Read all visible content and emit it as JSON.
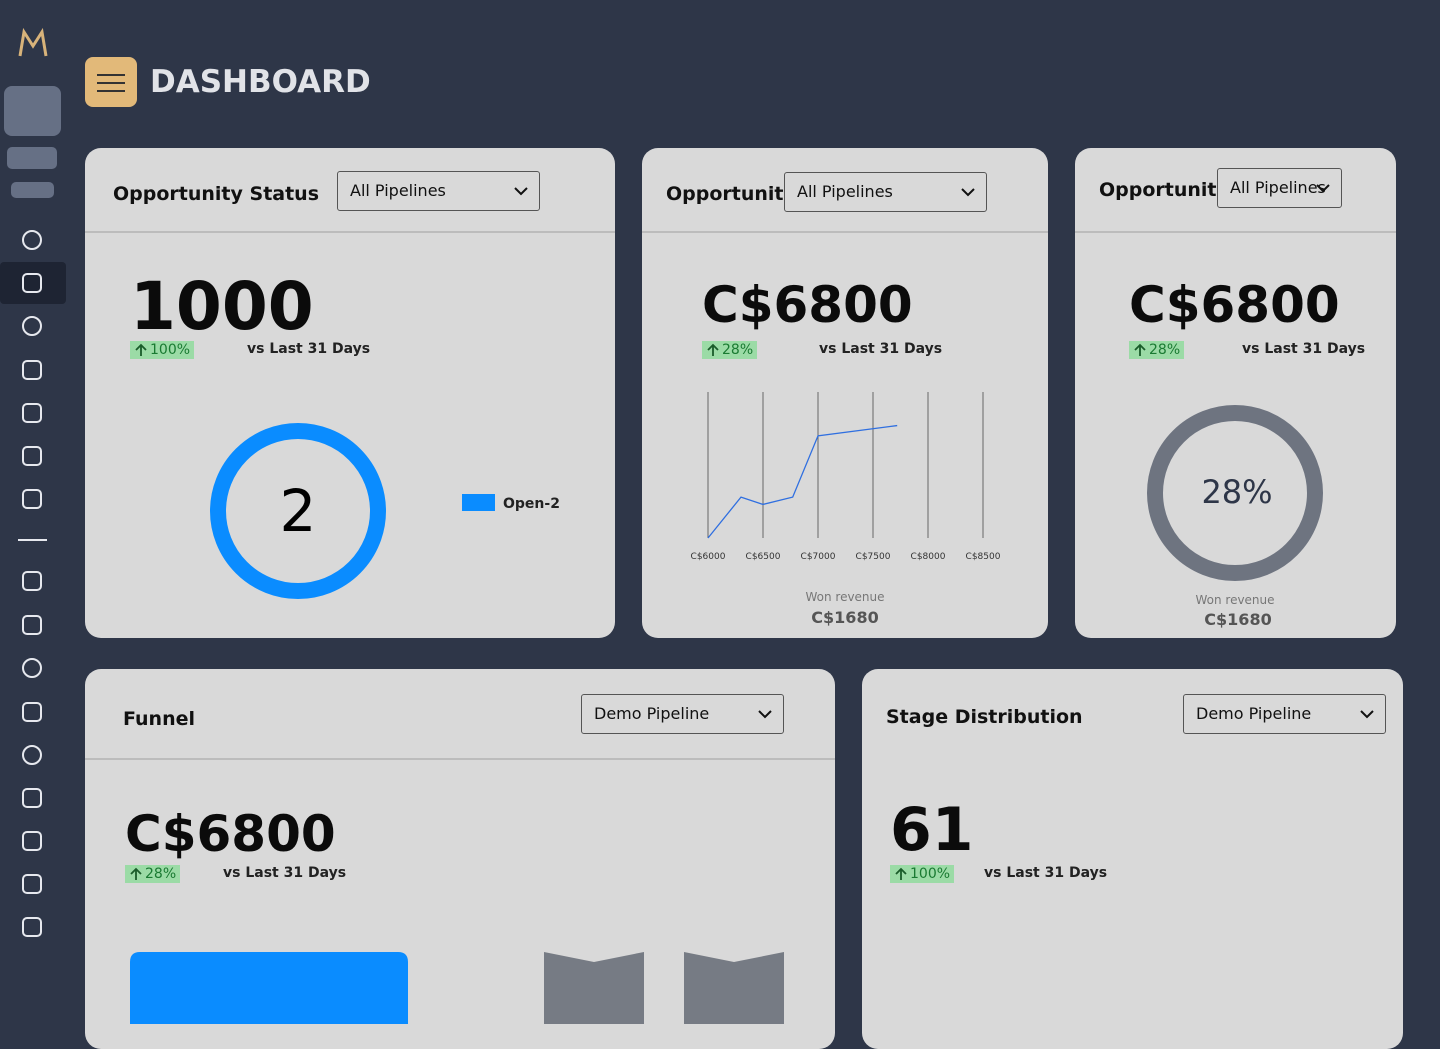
{
  "header": {
    "title": "DASHBOARD"
  },
  "cards": [
    {
      "title": "Opportunity Status",
      "dropdown": "All Pipelines",
      "value": "1000",
      "change": "100%",
      "compare": "vs Last 31 Days",
      "donut": {
        "center": "2",
        "legend": "Open-2",
        "color": "#0a8cff"
      }
    },
    {
      "title": "Opportunit",
      "dropdown": "All Pipelines",
      "value": "C$6800",
      "change": "28%",
      "compare": "vs Last 31 Days",
      "chart": {
        "type": "line",
        "x": [
          6000,
          6300,
          6500,
          6770,
          7000,
          7720
        ],
        "values": [
          0,
          28,
          23,
          28,
          70,
          77
        ],
        "color": "#2f6fe0",
        "xlim": [
          6000,
          8500
        ],
        "ylim": [
          0,
          100
        ],
        "xticks": [
          {
            "value": 6000,
            "label": "C$6000"
          },
          {
            "value": 6500,
            "label": "C$6500"
          },
          {
            "value": 7000,
            "label": "C$7000"
          },
          {
            "value": 7500,
            "label": "C$7500"
          },
          {
            "value": 8000,
            "label": "C$8000"
          },
          {
            "value": 8500,
            "label": "C$8500"
          }
        ],
        "caption": "Won revenue",
        "total": "C$1680"
      }
    },
    {
      "title": "Opportunit",
      "dropdown": "All Pipelines",
      "value": "C$6800",
      "change": "28%",
      "compare": "vs Last 31 Days",
      "gauge": {
        "label": "28%",
        "color": "#6e7480",
        "caption": "Won revenue",
        "total": "C$1680"
      }
    },
    {
      "title": "Funnel",
      "dropdown": "Demo Pipeline",
      "value": "C$6800",
      "change": "28%",
      "compare": "vs Last 31 Days"
    },
    {
      "title": "Stage Distribution",
      "dropdown": "Demo Pipeline",
      "value": "61",
      "change": "100%",
      "compare": "vs Last 31 Days"
    }
  ]
}
